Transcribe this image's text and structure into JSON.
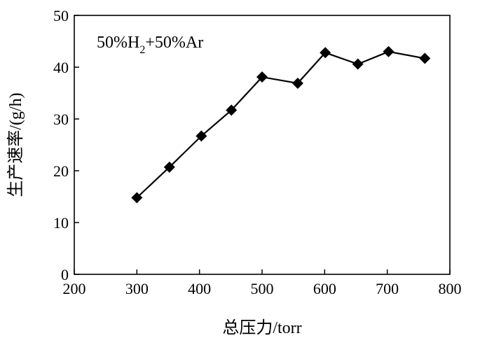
{
  "chart_data": {
    "type": "line",
    "xlabel": "总压力/torr",
    "ylabel": "生产速率/(g/h)",
    "xlim": [
      200,
      800
    ],
    "ylim": [
      0,
      50
    ],
    "xticks": [
      "200",
      "300",
      "400",
      "500",
      "600",
      "700",
      "800"
    ],
    "yticks": [
      "0",
      "10",
      "20",
      "30",
      "40",
      "50"
    ],
    "grid": false,
    "marker": "diamond",
    "annotation": {
      "parts": [
        "50%H",
        "2",
        "+50%Ar"
      ]
    },
    "series": [
      {
        "x": [
          300,
          352,
          403,
          451,
          500,
          557,
          601,
          653,
          702,
          760
        ],
        "y": [
          14.8,
          20.7,
          26.7,
          31.7,
          38.1,
          36.9,
          42.8,
          40.6,
          43.0,
          41.7
        ]
      }
    ]
  }
}
